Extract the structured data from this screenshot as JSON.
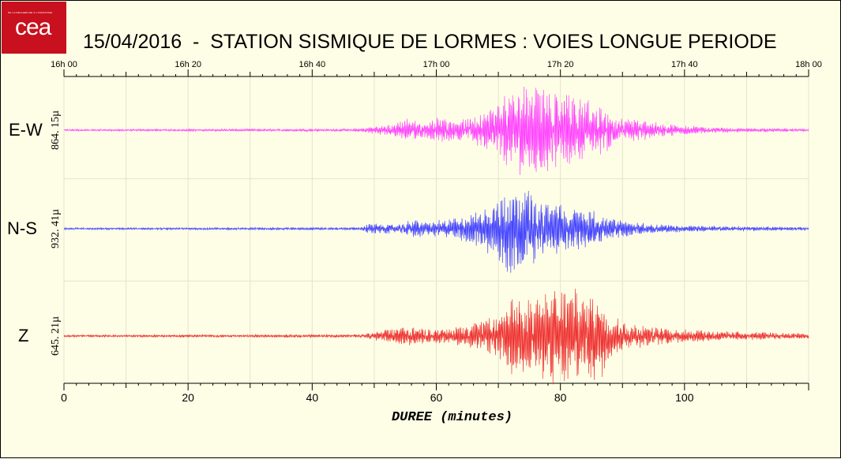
{
  "logo": {
    "text": "cea",
    "tagline": "DE LA RECHERCHE À L'INDUSTRIE"
  },
  "title": "15/04/2016  -  STATION SISMIQUE DE LORMES : VOIES LONGUE PERIODE",
  "chart_data": {
    "type": "line",
    "title": "15/04/2016  -  STATION SISMIQUE DE LORMES : VOIES LONGUE PERIODE",
    "xlabel": "DUREE (minutes)",
    "xlim": [
      0,
      120
    ],
    "x_ticks": [
      0,
      20,
      40,
      60,
      80,
      100
    ],
    "x_tick_labels": [
      "0",
      "20",
      "40",
      "60",
      "80",
      "100"
    ],
    "top_time_ticks": [
      0,
      20,
      40,
      60,
      80,
      100,
      120
    ],
    "top_time_labels": [
      "16h 00",
      "16h 20",
      "16h 40",
      "17h 00",
      "17h 20",
      "17h 40",
      "18h 00"
    ],
    "grid": true,
    "series": [
      {
        "name": "E-W",
        "scale_label": "864. 15µ",
        "color": "#ff44ff",
        "envelope": {
          "t": [
            0,
            48,
            49,
            53,
            55,
            58,
            60,
            63,
            66,
            69,
            71,
            73,
            75,
            77,
            79,
            81,
            83,
            86,
            89,
            92,
            96,
            100,
            105,
            110,
            120
          ],
          "a": [
            0.02,
            0.03,
            0.08,
            0.12,
            0.25,
            0.15,
            0.28,
            0.2,
            0.35,
            0.5,
            0.75,
            0.9,
            1.0,
            0.95,
            0.85,
            0.8,
            0.7,
            0.55,
            0.35,
            0.25,
            0.15,
            0.1,
            0.06,
            0.04,
            0.03
          ]
        }
      },
      {
        "name": "N-S",
        "scale_label": "932. 41µ",
        "color": "#4444ff",
        "envelope": {
          "t": [
            0,
            48,
            49,
            54,
            56,
            59,
            62,
            65,
            68,
            70,
            72,
            74,
            76,
            78,
            80,
            82,
            84,
            86,
            88,
            91,
            95,
            100,
            110,
            120
          ],
          "a": [
            0.02,
            0.03,
            0.12,
            0.1,
            0.2,
            0.15,
            0.22,
            0.3,
            0.45,
            0.8,
            1.0,
            0.85,
            0.75,
            0.6,
            0.55,
            0.45,
            0.4,
            0.35,
            0.25,
            0.15,
            0.1,
            0.07,
            0.05,
            0.03
          ]
        }
      },
      {
        "name": "Z",
        "scale_label": "645. 21µ",
        "color": "#ee3333",
        "envelope": {
          "t": [
            0,
            48,
            49,
            54,
            56,
            59,
            62,
            65,
            68,
            70,
            72,
            74,
            76,
            78,
            79,
            81,
            83,
            85,
            86,
            88,
            91,
            95,
            100,
            110,
            120
          ],
          "a": [
            0.02,
            0.03,
            0.08,
            0.15,
            0.18,
            0.12,
            0.15,
            0.22,
            0.3,
            0.45,
            0.7,
            0.75,
            0.8,
            0.85,
            1.0,
            0.85,
            0.9,
            0.8,
            0.95,
            0.45,
            0.25,
            0.18,
            0.12,
            0.08,
            0.05
          ]
        }
      }
    ]
  }
}
